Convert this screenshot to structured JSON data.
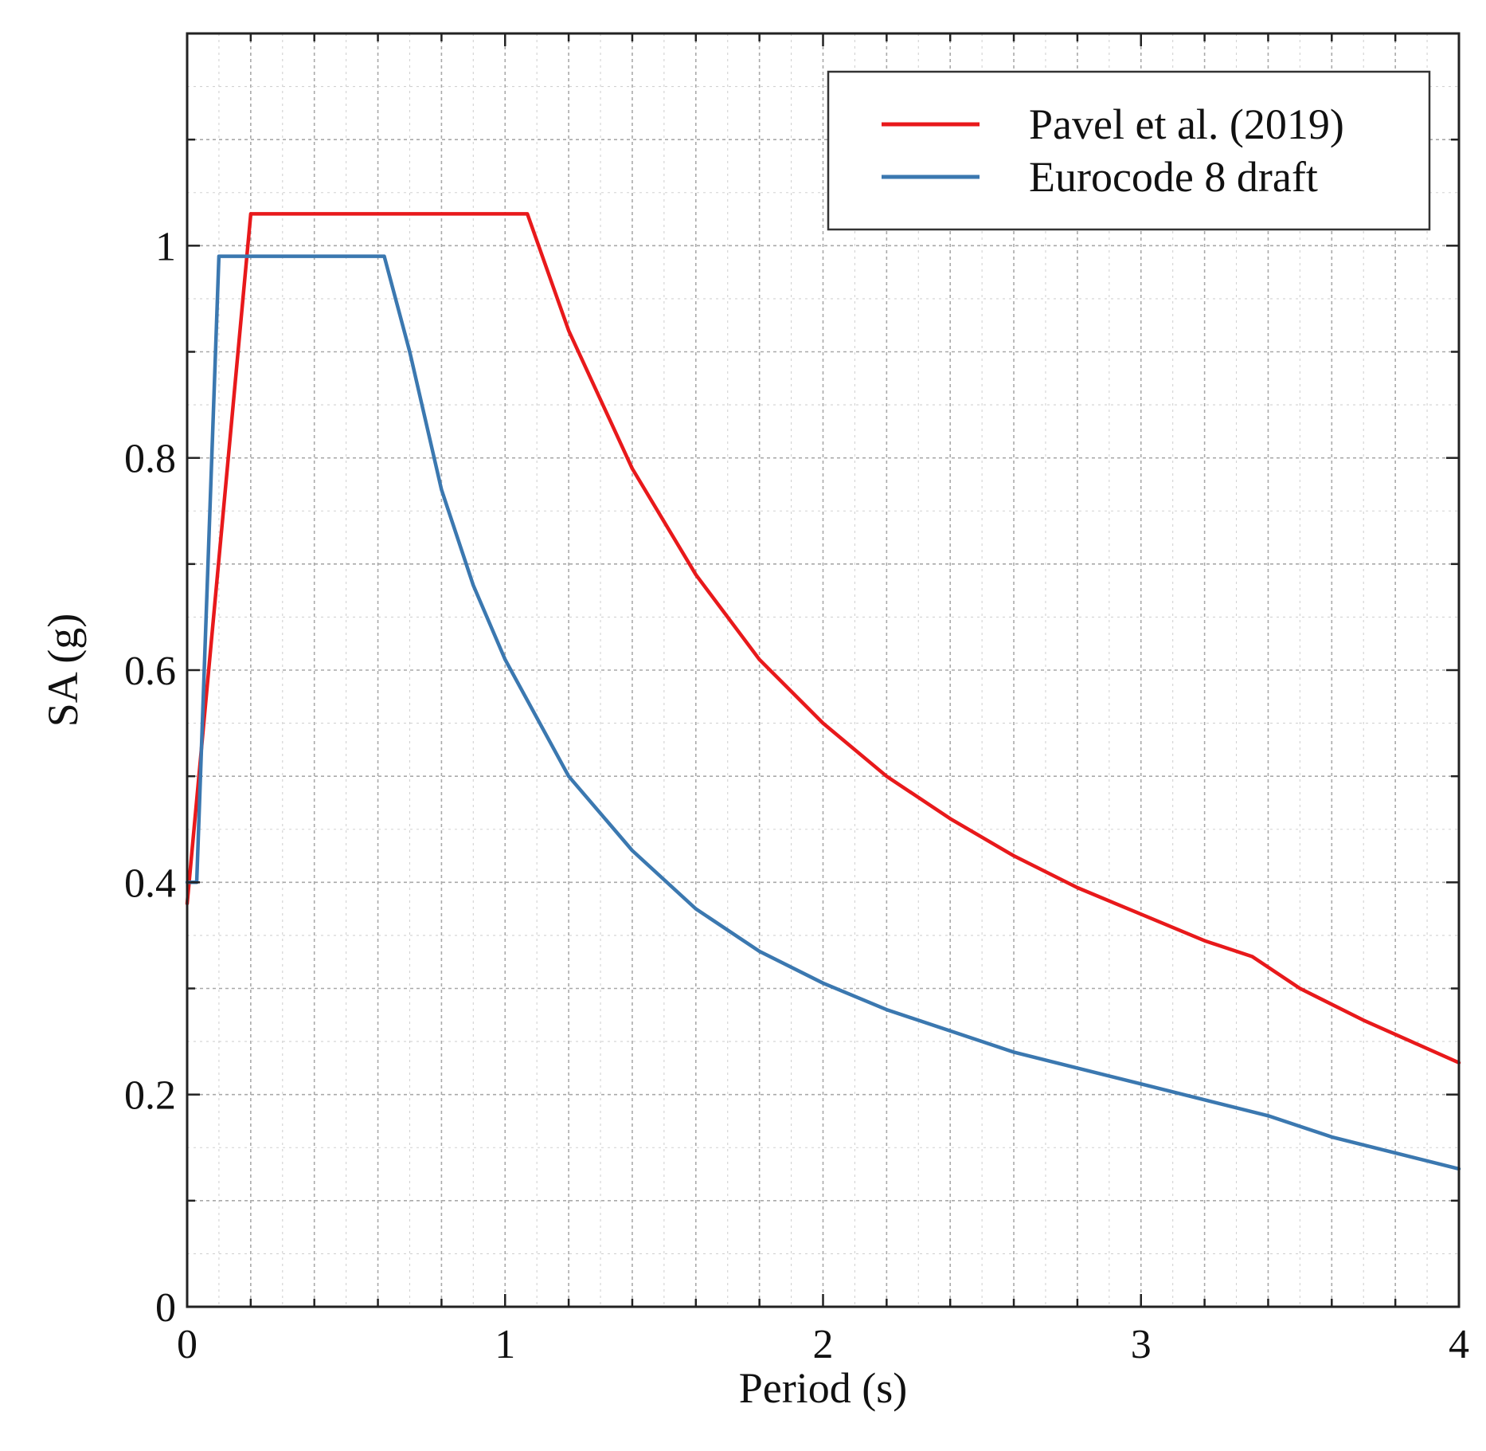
{
  "chart_data": {
    "type": "line",
    "title": "",
    "xlabel": "Period (s)",
    "ylabel": "SA (g)",
    "xlim": [
      0,
      4
    ],
    "ylim": [
      0,
      1.2
    ],
    "xticks": [
      0,
      1,
      2,
      3,
      4
    ],
    "xtick_labels": [
      "0",
      "1",
      "2",
      "3",
      "4"
    ],
    "yticks": [
      0,
      0.2,
      0.4,
      0.6,
      0.8,
      1
    ],
    "ytick_labels": [
      "0",
      "0.2",
      "0.4",
      "0.6",
      "0.8",
      "1"
    ],
    "grid": true,
    "legend_position": "top-right",
    "series": [
      {
        "name": "Pavel et al. (2019)",
        "color": "#e8191b",
        "x": [
          0,
          0.2,
          1.07,
          1.2,
          1.4,
          1.6,
          1.8,
          2.0,
          2.2,
          2.4,
          2.6,
          2.8,
          3.0,
          3.2,
          3.35,
          3.5,
          3.7,
          3.85,
          4.0
        ],
        "y": [
          0.38,
          1.03,
          1.03,
          0.92,
          0.79,
          0.69,
          0.61,
          0.55,
          0.5,
          0.46,
          0.425,
          0.395,
          0.37,
          0.345,
          0.33,
          0.3,
          0.27,
          0.25,
          0.23
        ]
      },
      {
        "name": "Eurocode 8 draft",
        "color": "#3b78b0",
        "x": [
          0,
          0.03,
          0.1,
          0.62,
          0.7,
          0.8,
          0.9,
          1.0,
          1.2,
          1.4,
          1.6,
          1.8,
          2.0,
          2.2,
          2.4,
          2.6,
          2.8,
          3.0,
          3.2,
          3.4,
          3.6,
          3.8,
          4.0
        ],
        "y": [
          0.4,
          0.4,
          0.99,
          0.99,
          0.9,
          0.77,
          0.68,
          0.61,
          0.5,
          0.43,
          0.375,
          0.335,
          0.305,
          0.28,
          0.26,
          0.24,
          0.225,
          0.21,
          0.195,
          0.18,
          0.16,
          0.145,
          0.13
        ]
      }
    ]
  }
}
